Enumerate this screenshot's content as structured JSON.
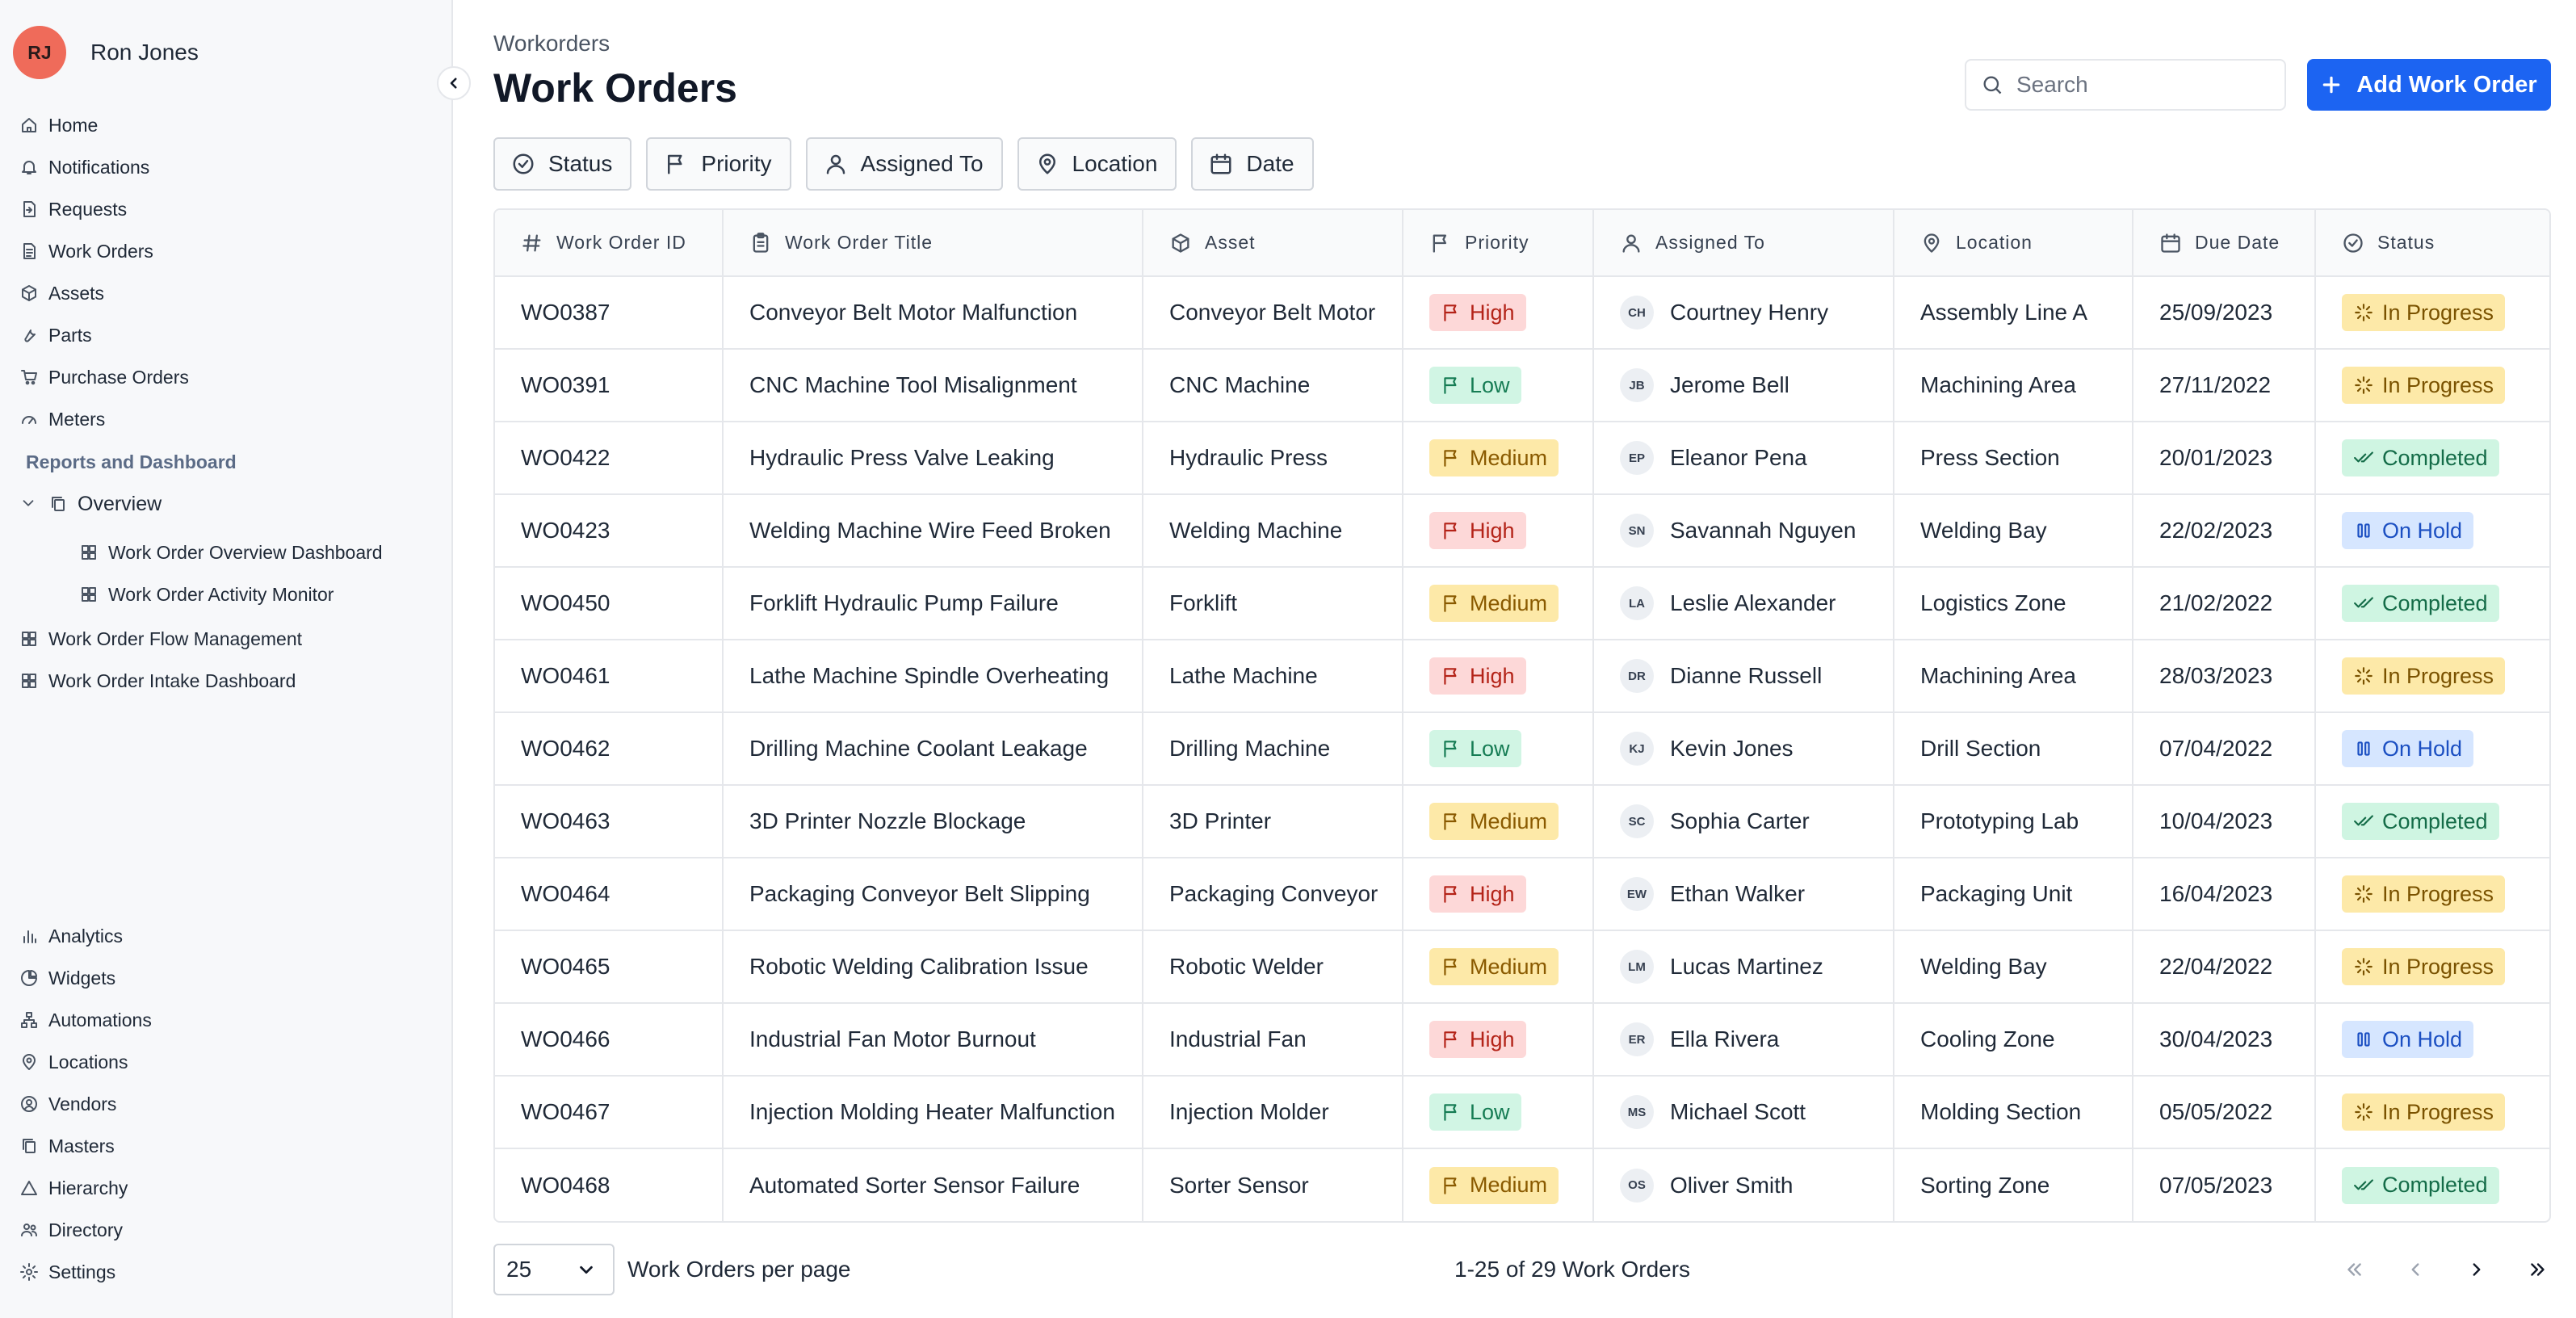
{
  "user": {
    "initials": "RJ",
    "name": "Ron Jones"
  },
  "sidebar": {
    "items": [
      {
        "label": "Home",
        "icon": "home-icon"
      },
      {
        "label": "Notifications",
        "icon": "bell-icon"
      },
      {
        "label": "Requests",
        "icon": "request-icon"
      },
      {
        "label": "Work Orders",
        "icon": "document-icon"
      },
      {
        "label": "Assets",
        "icon": "cube-icon"
      },
      {
        "label": "Parts",
        "icon": "wrench-icon"
      },
      {
        "label": "Purchase Orders",
        "icon": "cart-icon"
      },
      {
        "label": "Meters",
        "icon": "gauge-icon"
      }
    ],
    "section_title": "Reports and Dashboard",
    "overview_label": "Overview",
    "overview_children": [
      "Work Order Overview Dashboard",
      "Work Order Activity Monitor"
    ],
    "report_items": [
      "Work Order Flow Management",
      "Work Order Intake Dashboard"
    ],
    "bottom_items": [
      {
        "label": "Analytics",
        "icon": "bar-chart-icon"
      },
      {
        "label": "Widgets",
        "icon": "pie-chart-icon"
      },
      {
        "label": "Automations",
        "icon": "flow-icon"
      },
      {
        "label": "Locations",
        "icon": "map-pin-icon"
      },
      {
        "label": "Vendors",
        "icon": "vendor-icon"
      },
      {
        "label": "Masters",
        "icon": "copy-icon"
      },
      {
        "label": "Hierarchy",
        "icon": "triangle-icon"
      },
      {
        "label": "Directory",
        "icon": "users-icon"
      },
      {
        "label": "Settings",
        "icon": "gear-icon"
      }
    ]
  },
  "header": {
    "breadcrumb": "Workorders",
    "title": "Work Orders",
    "search_placeholder": "Search",
    "add_button": "Add Work Order"
  },
  "filters": [
    "Status",
    "Priority",
    "Assigned To",
    "Location",
    "Date"
  ],
  "table": {
    "columns": [
      "Work Order ID",
      "Work Order Title",
      "Asset",
      "Priority",
      "Assigned To",
      "Location",
      "Due Date",
      "Status"
    ],
    "rows": [
      {
        "id": "WO0387",
        "title": "Conveyor Belt Motor Malfunction",
        "asset": "Conveyor Belt Motor",
        "priority": "High",
        "initials": "CH",
        "assignee": "Courtney Henry",
        "location": "Assembly Line A",
        "due": "25/09/2023",
        "status": "In Progress"
      },
      {
        "id": "WO0391",
        "title": "CNC Machine Tool Misalignment",
        "asset": "CNC Machine",
        "priority": "Low",
        "initials": "JB",
        "assignee": "Jerome Bell",
        "location": "Machining Area",
        "due": "27/11/2022",
        "status": "In Progress"
      },
      {
        "id": "WO0422",
        "title": "Hydraulic Press Valve Leaking",
        "asset": "Hydraulic Press",
        "priority": "Medium",
        "initials": "EP",
        "assignee": "Eleanor Pena",
        "location": "Press Section",
        "due": "20/01/2023",
        "status": "Completed"
      },
      {
        "id": "WO0423",
        "title": "Welding Machine Wire Feed Broken",
        "asset": "Welding Machine",
        "priority": "High",
        "initials": "SN",
        "assignee": "Savannah Nguyen",
        "location": "Welding Bay",
        "due": "22/02/2023",
        "status": "On Hold"
      },
      {
        "id": "WO0450",
        "title": "Forklift Hydraulic Pump Failure",
        "asset": "Forklift",
        "priority": "Medium",
        "initials": "LA",
        "assignee": "Leslie Alexander",
        "location": "Logistics Zone",
        "due": "21/02/2022",
        "status": "Completed"
      },
      {
        "id": "WO0461",
        "title": "Lathe Machine Spindle Overheating",
        "asset": "Lathe Machine",
        "priority": "High",
        "initials": "DR",
        "assignee": "Dianne Russell",
        "location": "Machining Area",
        "due": "28/03/2023",
        "status": "In Progress"
      },
      {
        "id": "WO0462",
        "title": "Drilling Machine Coolant Leakage",
        "asset": "Drilling Machine",
        "priority": "Low",
        "initials": "KJ",
        "assignee": "Kevin Jones",
        "location": "Drill Section",
        "due": "07/04/2022",
        "status": "On Hold"
      },
      {
        "id": "WO0463",
        "title": "3D Printer Nozzle Blockage",
        "asset": "3D Printer",
        "priority": "Medium",
        "initials": "SC",
        "assignee": "Sophia Carter",
        "location": "Prototyping Lab",
        "due": "10/04/2023",
        "status": "Completed"
      },
      {
        "id": "WO0464",
        "title": "Packaging Conveyor Belt Slipping",
        "asset": "Packaging Conveyor",
        "priority": "High",
        "initials": "EW",
        "assignee": "Ethan Walker",
        "location": "Packaging Unit",
        "due": "16/04/2023",
        "status": "In Progress"
      },
      {
        "id": "WO0465",
        "title": "Robotic Welding Calibration Issue",
        "asset": "Robotic Welder",
        "priority": "Medium",
        "initials": "LM",
        "assignee": "Lucas Martinez",
        "location": "Welding Bay",
        "due": "22/04/2022",
        "status": "In Progress"
      },
      {
        "id": "WO0466",
        "title": "Industrial Fan Motor Burnout",
        "asset": "Industrial Fan",
        "priority": "High",
        "initials": "ER",
        "assignee": "Ella Rivera",
        "location": "Cooling Zone",
        "due": "30/04/2023",
        "status": "On Hold"
      },
      {
        "id": "WO0467",
        "title": "Injection Molding Heater Malfunction",
        "asset": "Injection Molder",
        "priority": "Low",
        "initials": "MS",
        "assignee": "Michael Scott",
        "location": "Molding Section",
        "due": "05/05/2022",
        "status": "In Progress"
      },
      {
        "id": "WO0468",
        "title": "Automated Sorter Sensor Failure",
        "asset": "Sorter Sensor",
        "priority": "Medium",
        "initials": "OS",
        "assignee": "Oliver Smith",
        "location": "Sorting Zone",
        "due": "07/05/2023",
        "status": "Completed"
      }
    ]
  },
  "footer": {
    "per_page_value": "25",
    "per_page_label": "Work Orders per page",
    "range_text": "1-25 of 29 Work Orders"
  },
  "colors": {
    "accent": "#1c64f2",
    "avatar": "#ef6b5a",
    "high": "#fdd8d8",
    "low": "#d1f5e4",
    "medium": "#fde9a8",
    "on_hold": "#d6e6ff",
    "completed": "#cff5e2"
  }
}
